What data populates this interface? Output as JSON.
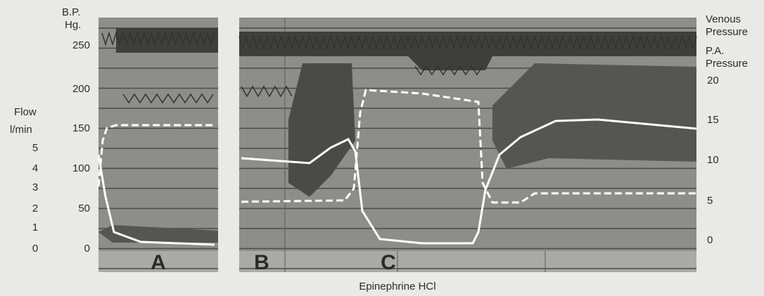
{
  "left_axis": {
    "title": [
      "B.P.",
      "Hg."
    ],
    "ticks": [
      "250",
      "200",
      "150",
      "100",
      "50",
      "0"
    ]
  },
  "flow_axis": {
    "title": [
      "Flow",
      "l/min"
    ],
    "ticks": [
      "5",
      "4",
      "3",
      "2",
      "1",
      "0"
    ]
  },
  "right_axis": {
    "venous_title": [
      "Venous",
      "Pressure"
    ],
    "pa_title": [
      "P.A.",
      "Pressure"
    ],
    "ticks": [
      "20",
      "15",
      "10",
      "5",
      "0"
    ]
  },
  "panel_labels": [
    "A",
    "B",
    "C"
  ],
  "caption": "Epinephrine HCl"
}
